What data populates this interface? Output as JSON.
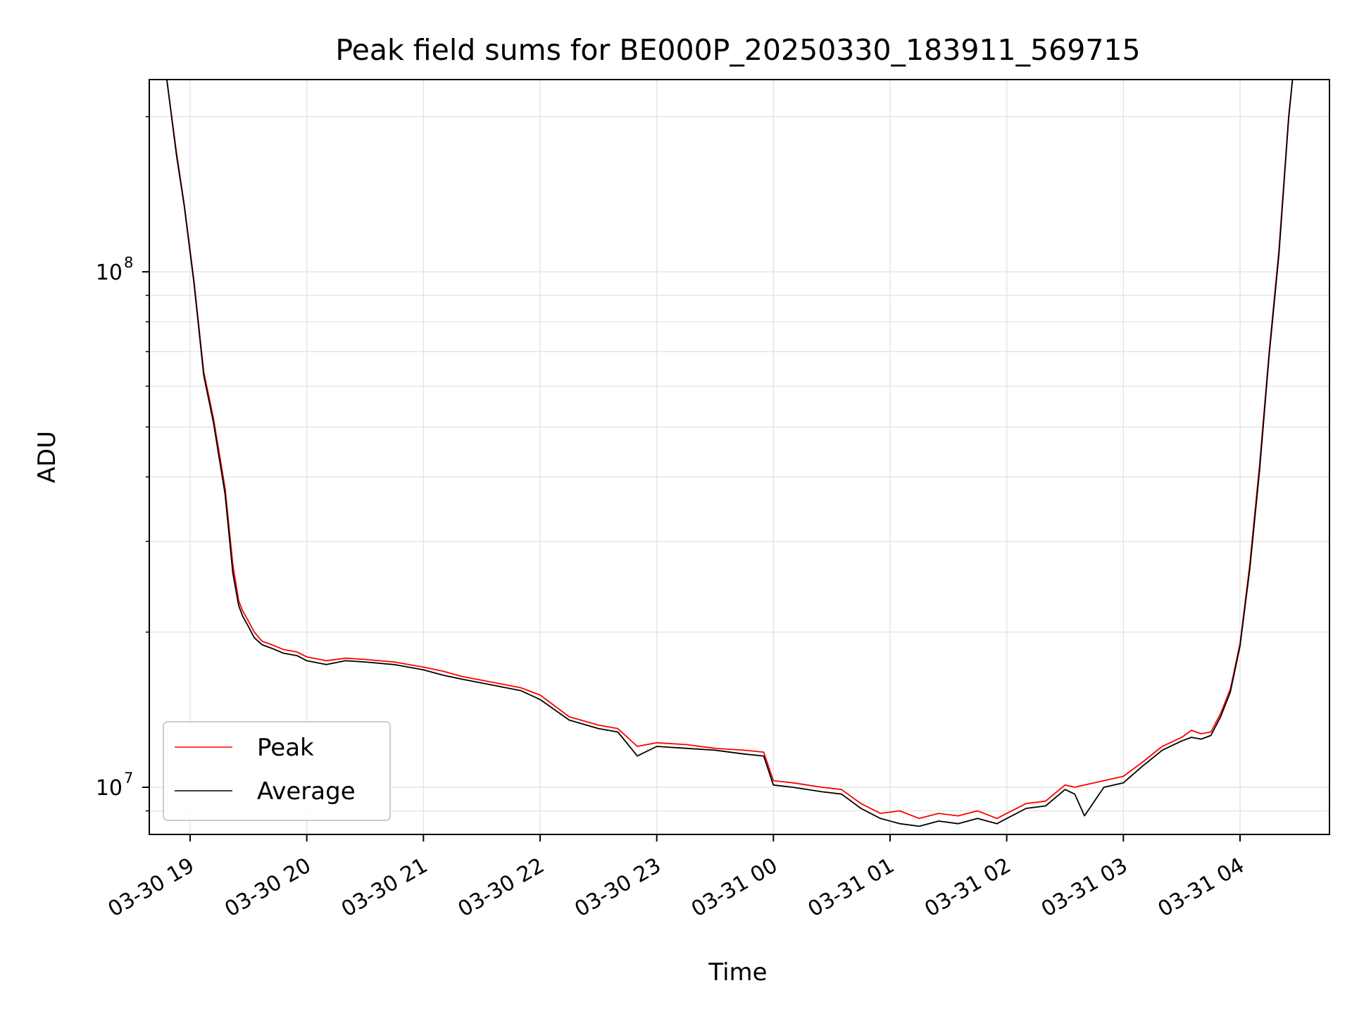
{
  "chart_data": {
    "type": "line",
    "title": "Peak field sums for BE000P_20250330_183911_569715",
    "xlabel": "Time",
    "ylabel": "ADU",
    "x_ticks": [
      "03-30 19",
      "03-30 20",
      "03-30 21",
      "03-30 22",
      "03-30 23",
      "03-31 00",
      "03-31 01",
      "03-31 02",
      "03-31 03",
      "03-31 04"
    ],
    "y_ticks": [
      {
        "base": "10",
        "exp": "7",
        "value": 10000000
      },
      {
        "base": "10",
        "exp": "8",
        "value": 100000000
      }
    ],
    "y_scale": "log",
    "ylim": [
      8100000,
      236000000
    ],
    "xlim": [
      "2025-03-30 18:39",
      "2025-03-31 04:46"
    ],
    "grid": true,
    "legend_position": "lower-left",
    "colors": {
      "Peak": "#ff0000",
      "Average": "#000000"
    },
    "series": [
      {
        "name": "Peak",
        "color": "#ff0000",
        "x": [
          "2025-03-30 18:48",
          "2025-03-30 18:53",
          "2025-03-30 18:57",
          "2025-03-30 19:02",
          "2025-03-30 19:07",
          "2025-03-30 19:12",
          "2025-03-30 19:18",
          "2025-03-30 19:22",
          "2025-03-30 19:25",
          "2025-03-30 19:27",
          "2025-03-30 19:30",
          "2025-03-30 19:33",
          "2025-03-30 19:37",
          "2025-03-30 19:42",
          "2025-03-30 19:48",
          "2025-03-30 19:55",
          "2025-03-30 20:00",
          "2025-03-30 20:10",
          "2025-03-30 20:20",
          "2025-03-30 20:30",
          "2025-03-30 20:45",
          "2025-03-30 21:00",
          "2025-03-30 21:10",
          "2025-03-30 21:20",
          "2025-03-30 21:35",
          "2025-03-30 21:50",
          "2025-03-30 22:00",
          "2025-03-30 22:15",
          "2025-03-30 22:30",
          "2025-03-30 22:40",
          "2025-03-30 22:50",
          "2025-03-30 23:00",
          "2025-03-30 23:15",
          "2025-03-30 23:30",
          "2025-03-30 23:45",
          "2025-03-30 23:55",
          "2025-03-31 00:00",
          "2025-03-31 00:10",
          "2025-03-31 00:25",
          "2025-03-31 00:35",
          "2025-03-31 00:45",
          "2025-03-31 00:55",
          "2025-03-31 01:05",
          "2025-03-31 01:15",
          "2025-03-31 01:25",
          "2025-03-31 01:35",
          "2025-03-31 01:45",
          "2025-03-31 01:55",
          "2025-03-31 02:00",
          "2025-03-31 02:10",
          "2025-03-31 02:20",
          "2025-03-31 02:30",
          "2025-03-31 02:35",
          "2025-03-31 02:40",
          "2025-03-31 02:50",
          "2025-03-31 03:00",
          "2025-03-31 03:10",
          "2025-03-31 03:20",
          "2025-03-31 03:30",
          "2025-03-31 03:35",
          "2025-03-31 03:40",
          "2025-03-31 03:45",
          "2025-03-31 03:50",
          "2025-03-31 03:55",
          "2025-03-31 04:00",
          "2025-03-31 04:05",
          "2025-03-31 04:10",
          "2025-03-31 04:15",
          "2025-03-31 04:20",
          "2025-03-31 04:25",
          "2025-03-31 04:27"
        ],
        "y": [
          236000000,
          170000000,
          135000000,
          96000000,
          64000000,
          52000000,
          38000000,
          27000000,
          23000000,
          22000000,
          21000000,
          20000000,
          19200000,
          18900000,
          18500000,
          18300000,
          17900000,
          17600000,
          17800000,
          17700000,
          17500000,
          17100000,
          16800000,
          16400000,
          16000000,
          15600000,
          15100000,
          13700000,
          13200000,
          13000000,
          12000000,
          12200000,
          12100000,
          11900000,
          11800000,
          11700000,
          10300000,
          10200000,
          10000000,
          9900000,
          9300000,
          8900000,
          9000000,
          8700000,
          8900000,
          8800000,
          9000000,
          8700000,
          8900000,
          9300000,
          9400000,
          10100000,
          10000000,
          10100000,
          10300000,
          10500000,
          11200000,
          12000000,
          12500000,
          12900000,
          12700000,
          12800000,
          13900000,
          15500000,
          19000000,
          27000000,
          42000000,
          70000000,
          110000000,
          200000000,
          236000000
        ]
      },
      {
        "name": "Average",
        "color": "#000000",
        "x": [
          "2025-03-30 18:48",
          "2025-03-30 18:53",
          "2025-03-30 18:57",
          "2025-03-30 19:02",
          "2025-03-30 19:07",
          "2025-03-30 19:12",
          "2025-03-30 19:18",
          "2025-03-30 19:22",
          "2025-03-30 19:25",
          "2025-03-30 19:27",
          "2025-03-30 19:30",
          "2025-03-30 19:33",
          "2025-03-30 19:37",
          "2025-03-30 19:42",
          "2025-03-30 19:48",
          "2025-03-30 19:55",
          "2025-03-30 20:00",
          "2025-03-30 20:10",
          "2025-03-30 20:20",
          "2025-03-30 20:30",
          "2025-03-30 20:45",
          "2025-03-30 21:00",
          "2025-03-30 21:10",
          "2025-03-30 21:20",
          "2025-03-30 21:35",
          "2025-03-30 21:50",
          "2025-03-30 22:00",
          "2025-03-30 22:15",
          "2025-03-30 22:30",
          "2025-03-30 22:40",
          "2025-03-30 22:50",
          "2025-03-30 23:00",
          "2025-03-30 23:15",
          "2025-03-30 23:30",
          "2025-03-30 23:45",
          "2025-03-30 23:55",
          "2025-03-31 00:00",
          "2025-03-31 00:10",
          "2025-03-31 00:25",
          "2025-03-31 00:35",
          "2025-03-31 00:45",
          "2025-03-31 00:55",
          "2025-03-31 01:05",
          "2025-03-31 01:15",
          "2025-03-31 01:25",
          "2025-03-31 01:35",
          "2025-03-31 01:45",
          "2025-03-31 01:55",
          "2025-03-31 02:00",
          "2025-03-31 02:10",
          "2025-03-31 02:20",
          "2025-03-31 02:30",
          "2025-03-31 02:35",
          "2025-03-31 02:40",
          "2025-03-31 02:50",
          "2025-03-31 03:00",
          "2025-03-31 03:10",
          "2025-03-31 03:20",
          "2025-03-31 03:30",
          "2025-03-31 03:35",
          "2025-03-31 03:40",
          "2025-03-31 03:45",
          "2025-03-31 03:50",
          "2025-03-31 03:55",
          "2025-03-31 04:00",
          "2025-03-31 04:05",
          "2025-03-31 04:10",
          "2025-03-31 04:15",
          "2025-03-31 04:20",
          "2025-03-31 04:25",
          "2025-03-31 04:27"
        ],
        "y": [
          236000000,
          168000000,
          134000000,
          95000000,
          63000000,
          51000000,
          37000000,
          26000000,
          22500000,
          21500000,
          20500000,
          19500000,
          18900000,
          18600000,
          18200000,
          18000000,
          17600000,
          17300000,
          17600000,
          17500000,
          17300000,
          16900000,
          16500000,
          16200000,
          15800000,
          15400000,
          14800000,
          13500000,
          13000000,
          12800000,
          11500000,
          12000000,
          11900000,
          11800000,
          11600000,
          11500000,
          10100000,
          10000000,
          9800000,
          9700000,
          9100000,
          8700000,
          8500000,
          8400000,
          8600000,
          8500000,
          8700000,
          8500000,
          8700000,
          9100000,
          9200000,
          9900000,
          9700000,
          8800000,
          10000000,
          10200000,
          11000000,
          11800000,
          12300000,
          12500000,
          12400000,
          12600000,
          13700000,
          15300000,
          18800000,
          26500000,
          41000000,
          69000000,
          108000000,
          198000000,
          236000000
        ]
      }
    ]
  }
}
